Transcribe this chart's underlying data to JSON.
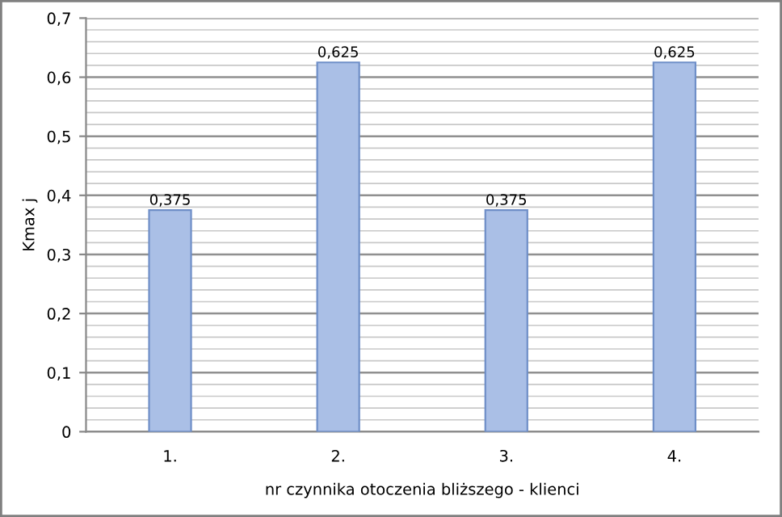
{
  "chart_data": {
    "type": "bar",
    "xlabel": "nr czynnika otoczenia bliższego - klienci",
    "ylabel": "Kmax j",
    "categories": [
      "1.",
      "2.",
      "3.",
      "4."
    ],
    "values": [
      0.375,
      0.625,
      0.375,
      0.625
    ],
    "value_labels": [
      "0,375",
      "0,625",
      "0,375",
      "0,625"
    ],
    "color": "#aabfe6",
    "ylim": [
      0,
      0.7
    ],
    "yticks": [
      0,
      {
        "value": 0.1,
        "label": "0,1"
      },
      {
        "value": 0.2,
        "label": "0,2"
      },
      {
        "value": 0.3,
        "label": "0,3"
      },
      {
        "value": 0.4,
        "label": "0,4"
      },
      {
        "value": 0.5,
        "label": "0,5"
      },
      {
        "value": 0.6,
        "label": "0,6"
      },
      {
        "value": 0.7,
        "label": "0,7"
      }
    ],
    "grid": "y"
  }
}
